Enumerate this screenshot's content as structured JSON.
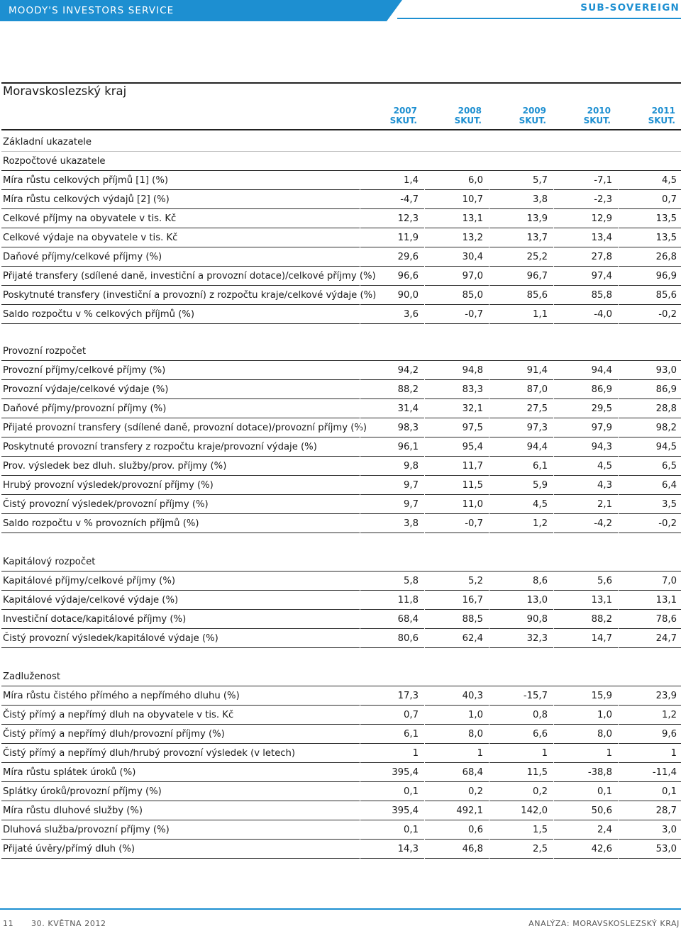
{
  "header": {
    "publisher": "MOODY'S INVESTORS SERVICE",
    "category": "SUB-SOVEREIGN"
  },
  "title": "Moravskoslezský kraj",
  "columns": [
    "2007\nSKUT.",
    "2008\nSKUT.",
    "2009\nSKUT.",
    "2010\nSKUT.",
    "2011\nSKUT."
  ],
  "column_years": [
    "2007",
    "2008",
    "2009",
    "2010",
    "2011"
  ],
  "column_sub": "SKUT.",
  "sections": [
    {
      "heading": "Základní ukazatele",
      "subheading": "Rozpočtové ukazatele",
      "rows": [
        {
          "label": "Míra růstu celkových příjmů [1] (%)",
          "values": [
            "1,4",
            "6,0",
            "5,7",
            "-7,1",
            "4,5"
          ]
        },
        {
          "label": "Míra růstu celkových výdajů [2] (%)",
          "values": [
            "-4,7",
            "10,7",
            "3,8",
            "-2,3",
            "0,7"
          ]
        },
        {
          "label": "Celkové příjmy na obyvatele v tis. Kč",
          "values": [
            "12,3",
            "13,1",
            "13,9",
            "12,9",
            "13,5"
          ]
        },
        {
          "label": "Celkové výdaje na obyvatele v tis. Kč",
          "values": [
            "11,9",
            "13,2",
            "13,7",
            "13,4",
            "13,5"
          ]
        },
        {
          "label": "Daňové příjmy/celkové příjmy (%)",
          "values": [
            "29,6",
            "30,4",
            "25,2",
            "27,8",
            "26,8"
          ]
        },
        {
          "label": "Přijaté transfery (sdílené daně, investiční a provozní dotace)/celkové příjmy (%)",
          "values": [
            "96,6",
            "97,0",
            "96,7",
            "97,4",
            "96,9"
          ]
        },
        {
          "label": "Poskytnuté transfery (investiční a provozní) z rozpočtu kraje/celkové výdaje (%)",
          "values": [
            "90,0",
            "85,0",
            "85,6",
            "85,8",
            "85,6"
          ]
        },
        {
          "label": "Saldo rozpočtu v % celkových příjmů (%)",
          "values": [
            "3,6",
            "-0,7",
            "1,1",
            "-4,0",
            "-0,2"
          ]
        }
      ]
    },
    {
      "heading": "Provozní rozpočet",
      "rows": [
        {
          "label": "Provozní příjmy/celkové příjmy (%)",
          "values": [
            "94,2",
            "94,8",
            "91,4",
            "94,4",
            "93,0"
          ]
        },
        {
          "label": "Provozní výdaje/celkové výdaje (%)",
          "values": [
            "88,2",
            "83,3",
            "87,0",
            "86,9",
            "86,9"
          ]
        },
        {
          "label": "Daňové příjmy/provozní příjmy (%)",
          "values": [
            "31,4",
            "32,1",
            "27,5",
            "29,5",
            "28,8"
          ]
        },
        {
          "label": "Přijaté provozní transfery (sdílené daně, provozní dotace)/provozní příjmy (%)",
          "values": [
            "98,3",
            "97,5",
            "97,3",
            "97,9",
            "98,2"
          ]
        },
        {
          "label": "Poskytnuté provozní transfery z rozpočtu kraje/provozní výdaje (%)",
          "values": [
            "96,1",
            "95,4",
            "94,4",
            "94,3",
            "94,5"
          ]
        },
        {
          "label": "Prov. výsledek bez dluh. služby/prov. příjmy (%)",
          "values": [
            "9,8",
            "11,7",
            "6,1",
            "4,5",
            "6,5"
          ]
        },
        {
          "label": "Hrubý provozní výsledek/provozní příjmy (%)",
          "values": [
            "9,7",
            "11,5",
            "5,9",
            "4,3",
            "6,4"
          ]
        },
        {
          "label": "Čistý provozní výsledek/provozní příjmy (%)",
          "values": [
            "9,7",
            "11,0",
            "4,5",
            "2,1",
            "3,5"
          ]
        },
        {
          "label": "Saldo rozpočtu v % provozních příjmů (%)",
          "values": [
            "3,8",
            "-0,7",
            "1,2",
            "-4,2",
            "-0,2"
          ]
        }
      ]
    },
    {
      "heading": "Kapitálový rozpočet",
      "rows": [
        {
          "label": "Kapitálové příjmy/celkové příjmy (%)",
          "values": [
            "5,8",
            "5,2",
            "8,6",
            "5,6",
            "7,0"
          ]
        },
        {
          "label": "Kapitálové výdaje/celkové výdaje (%)",
          "values": [
            "11,8",
            "16,7",
            "13,0",
            "13,1",
            "13,1"
          ]
        },
        {
          "label": "Investiční dotace/kapitálové příjmy (%)",
          "values": [
            "68,4",
            "88,5",
            "90,8",
            "88,2",
            "78,6"
          ]
        },
        {
          "label": "Čistý provozní výsledek/kapitálové výdaje (%)",
          "values": [
            "80,6",
            "62,4",
            "32,3",
            "14,7",
            "24,7"
          ]
        }
      ]
    },
    {
      "heading": "Zadluženost",
      "rows": [
        {
          "label": "Míra růstu čistého přímého a nepřímého dluhu (%)",
          "values": [
            "17,3",
            "40,3",
            "-15,7",
            "15,9",
            "23,9"
          ]
        },
        {
          "label": "Čistý přímý a nepřímý dluh na obyvatele v tis. Kč",
          "values": [
            "0,7",
            "1,0",
            "0,8",
            "1,0",
            "1,2"
          ]
        },
        {
          "label": "Čistý přímý a nepřímý dluh/provozní příjmy (%)",
          "values": [
            "6,1",
            "8,0",
            "6,6",
            "8,0",
            "9,6"
          ]
        },
        {
          "label": "Čistý přímý a nepřímý dluh/hrubý provozní výsledek (v letech)",
          "values": [
            "1",
            "1",
            "1",
            "1",
            "1"
          ]
        },
        {
          "label": "Míra růstu splátek úroků (%)",
          "values": [
            "395,4",
            "68,4",
            "11,5",
            "-38,8",
            "-11,4"
          ]
        },
        {
          "label": "Splátky úroků/provozní příjmy (%)",
          "values": [
            "0,1",
            "0,2",
            "0,2",
            "0,1",
            "0,1"
          ]
        },
        {
          "label": "Míra růstu dluhové služby (%)",
          "values": [
            "395,4",
            "492,1",
            "142,0",
            "50,6",
            "28,7"
          ]
        },
        {
          "label": "Dluhová služba/provozní příjmy (%)",
          "values": [
            "0,1",
            "0,6",
            "1,5",
            "2,4",
            "3,0"
          ]
        },
        {
          "label": "Přijaté úvěry/přímý dluh (%)",
          "values": [
            "14,3",
            "46,8",
            "2,5",
            "42,6",
            "53,0"
          ]
        }
      ]
    }
  ],
  "footer": {
    "page": "11",
    "date": "30. KVĚTNA 2012",
    "doc": "ANALÝZA: MORAVSKOSLEZSKÝ KRAJ"
  },
  "colors": {
    "accent": "#1d8fd1",
    "rule": "#2a2a2a"
  }
}
